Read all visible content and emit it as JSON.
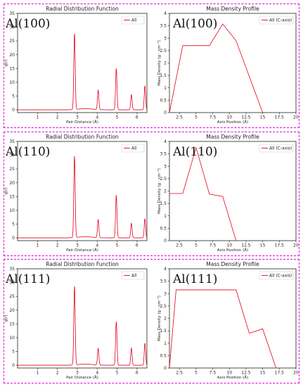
{
  "colors": {
    "line": "#e8001c",
    "panel_border": "#e000e0",
    "axis": "#222222"
  },
  "panels": [
    {
      "label": "Al(100)"
    },
    {
      "label": "Al(110)"
    },
    {
      "label": "Al(111)"
    }
  ],
  "chart_data": [
    {
      "panel": 0,
      "type": "line",
      "title": "Radial Distribution Function",
      "xlabel": "Pair Distance (Å)",
      "ylabel": "g(r)",
      "xlim": [
        0,
        6.5
      ],
      "ylim": [
        -1,
        35
      ],
      "xticks": [
        1,
        2,
        3,
        4,
        5,
        6
      ],
      "yticks": [
        0,
        5,
        10,
        15,
        20,
        25,
        30,
        35
      ],
      "annotation": "Al(100)",
      "legend_position": "top-right",
      "series": [
        {
          "name": "All",
          "peaks": [
            [
              2.86,
              27.5
            ],
            [
              4.05,
              7.0
            ],
            [
              4.96,
              15.0
            ],
            [
              5.72,
              5.5
            ],
            [
              6.4,
              8.7
            ]
          ]
        }
      ]
    },
    {
      "panel": 0,
      "type": "line",
      "title": "Mass Density Profile",
      "xlabel": "Axis Position (Å)",
      "ylabel": "Mass Density (g · cm⁻³)",
      "xlim": [
        1,
        20
      ],
      "ylim": [
        0,
        4.0
      ],
      "xticks": [
        2.5,
        5.0,
        7.5,
        10.0,
        12.5,
        15.0,
        17.5,
        20.0
      ],
      "yticks": [
        0.0,
        0.5,
        1.0,
        1.5,
        2.0,
        2.5,
        3.0,
        3.5,
        4.0
      ],
      "annotation": "Al(100)",
      "legend_position": "top-right",
      "series": [
        {
          "name": "All (C-axis)",
          "x": [
            1,
            3,
            5,
            7,
            9,
            11,
            13,
            15
          ],
          "y": [
            0,
            2.7,
            2.7,
            2.7,
            3.57,
            2.9,
            1.45,
            0
          ]
        }
      ]
    },
    {
      "panel": 1,
      "type": "line",
      "title": "Radial Distribution Function",
      "xlabel": "Pair Distance (Å)",
      "ylabel": "g(r)",
      "xlim": [
        0,
        6.5
      ],
      "ylim": [
        -1,
        35
      ],
      "xticks": [
        1,
        2,
        3,
        4,
        5,
        6
      ],
      "yticks": [
        0,
        5,
        10,
        15,
        20,
        25,
        30,
        35
      ],
      "annotation": "Al(110)",
      "legend_position": "top-right",
      "series": [
        {
          "name": "All",
          "peaks": [
            [
              2.86,
              29.5
            ],
            [
              4.05,
              6.5
            ],
            [
              4.96,
              15.5
            ],
            [
              5.72,
              5.3
            ],
            [
              6.4,
              7.0
            ]
          ]
        }
      ]
    },
    {
      "panel": 1,
      "type": "line",
      "title": "Mass Density Profile",
      "xlabel": "Axis Position (Å)",
      "ylabel": "Mass Density (g · cm⁻³)",
      "xlim": [
        1,
        20
      ],
      "ylim": [
        0,
        4.0
      ],
      "xticks": [
        2.5,
        5.0,
        7.5,
        10.0,
        12.5,
        15.0,
        17.5,
        20.0
      ],
      "yticks": [
        0.0,
        0.5,
        1.0,
        1.5,
        2.0,
        2.5,
        3.0,
        3.5,
        4.0
      ],
      "annotation": "Al(110)",
      "legend_position": "top-right",
      "series": [
        {
          "name": "All (C-axis)",
          "x": [
            1,
            3,
            5,
            7,
            9,
            11
          ],
          "y": [
            1.9,
            1.9,
            3.75,
            1.88,
            1.78,
            0
          ]
        }
      ]
    },
    {
      "panel": 2,
      "type": "line",
      "title": "Radial Distribution Function",
      "xlabel": "Pair Distance (Å)",
      "ylabel": "g(r)",
      "xlim": [
        0,
        6.5
      ],
      "ylim": [
        -1,
        35
      ],
      "xticks": [
        1,
        2,
        3,
        4,
        5,
        6
      ],
      "yticks": [
        0,
        5,
        10,
        15,
        20,
        25,
        30,
        35
      ],
      "annotation": "Al(111)",
      "legend_position": "top-right",
      "series": [
        {
          "name": "All",
          "peaks": [
            [
              2.86,
              28.5
            ],
            [
              4.05,
              6.0
            ],
            [
              4.96,
              15.8
            ],
            [
              5.72,
              6.2
            ],
            [
              6.4,
              8.0
            ]
          ]
        }
      ]
    },
    {
      "panel": 2,
      "type": "line",
      "title": "Mass Density Profile",
      "xlabel": "Axis Position (Å)",
      "ylabel": "Mass Density (g · cm⁻³)",
      "xlim": [
        1,
        20
      ],
      "ylim": [
        0,
        4.0
      ],
      "xticks": [
        2.5,
        5.0,
        7.5,
        10.0,
        12.5,
        15.0,
        17.5,
        20.0
      ],
      "yticks": [
        0.0,
        0.5,
        1.0,
        1.5,
        2.0,
        2.5,
        3.0,
        3.5,
        4.0
      ],
      "annotation": "Al(111)",
      "legend_position": "top-right",
      "series": [
        {
          "name": "All (C-axis)",
          "x": [
            1,
            2,
            3,
            11,
            13,
            15,
            17
          ],
          "y": [
            0,
            3.15,
            3.15,
            3.15,
            1.4,
            1.58,
            0
          ]
        }
      ]
    }
  ]
}
